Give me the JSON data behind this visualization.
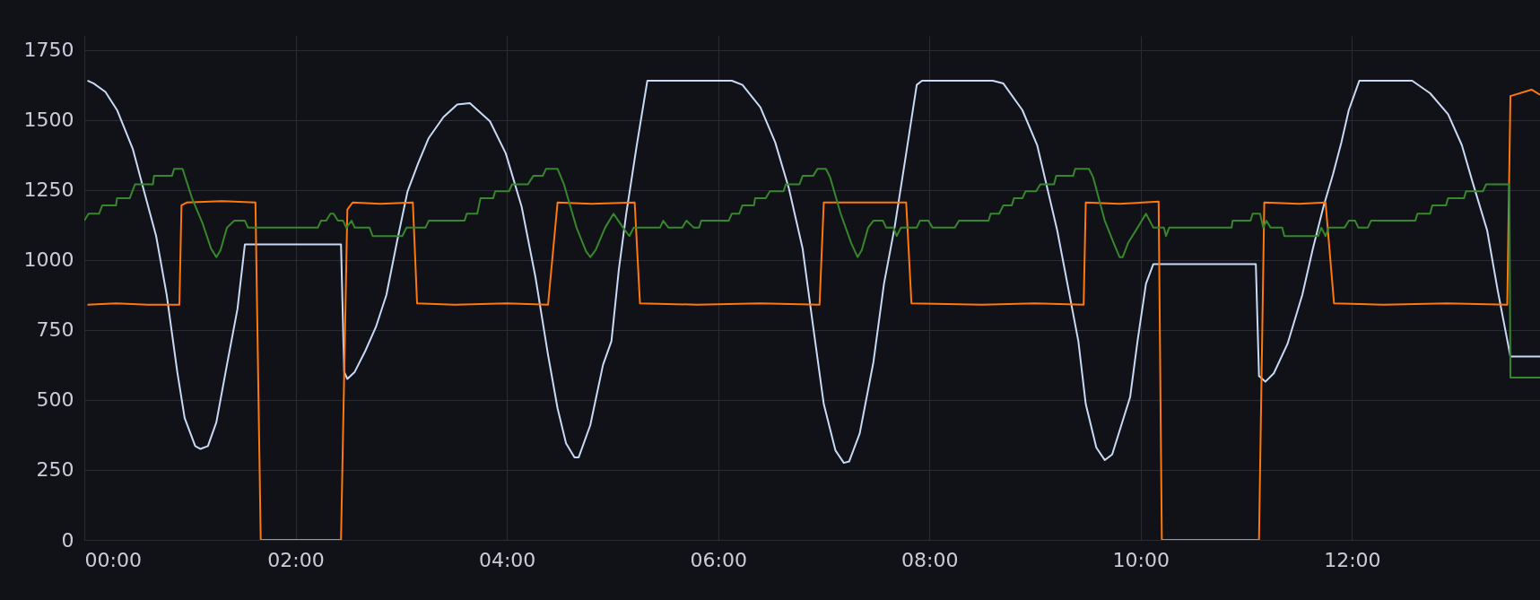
{
  "chart_data": {
    "type": "line",
    "xlim": [
      0,
      13.78
    ],
    "ylim": [
      0,
      1800
    ],
    "xticks": [
      {
        "value": 0,
        "label": "00:00"
      },
      {
        "value": 2,
        "label": "02:00"
      },
      {
        "value": 4,
        "label": "04:00"
      },
      {
        "value": 6,
        "label": "06:00"
      },
      {
        "value": 8,
        "label": "08:00"
      },
      {
        "value": 10,
        "label": "10:00"
      },
      {
        "value": 12,
        "label": "12:00"
      }
    ],
    "yticks": [
      0,
      250,
      500,
      750,
      1000,
      1250,
      1500,
      1750
    ],
    "grid": true,
    "line_style": "solid",
    "marker": "none",
    "series": [
      {
        "color": "#c8daf5",
        "x": [
          0.03,
          0.09,
          0.2,
          0.31,
          0.46,
          0.58,
          0.68,
          0.78,
          0.88,
          0.95,
          1.05,
          1.1,
          1.17,
          1.25,
          1.35,
          1.45,
          1.52,
          2.43,
          2.46,
          2.49,
          2.56,
          2.66,
          2.76,
          2.86,
          2.96,
          3.06,
          3.16,
          3.26,
          3.4,
          3.53,
          3.65,
          3.84,
          3.99,
          4.14,
          4.27,
          4.39,
          4.48,
          4.56,
          4.64,
          4.68,
          4.79,
          4.91,
          4.99,
          5.06,
          5.13,
          5.23,
          5.33,
          6.13,
          6.23,
          6.4,
          6.54,
          6.67,
          6.8,
          6.9,
          7.0,
          7.11,
          7.19,
          7.24,
          7.34,
          7.47,
          7.57,
          7.67,
          7.78,
          7.88,
          7.93,
          8.6,
          8.7,
          8.88,
          9.02,
          9.21,
          9.41,
          9.48,
          9.58,
          9.66,
          9.73,
          9.9,
          9.97,
          10.05,
          10.12,
          11.09,
          11.12,
          11.18,
          11.26,
          11.39,
          11.53,
          11.63,
          11.73,
          11.82,
          11.9,
          11.97,
          12.07,
          12.57,
          12.74,
          12.91,
          13.04,
          13.14,
          13.28,
          13.38,
          13.5,
          13.78
        ],
        "values": [
          1640,
          1630,
          1600,
          1535,
          1395,
          1225,
          1085,
          875,
          600,
          435,
          335,
          325,
          335,
          420,
          625,
          825,
          1055,
          1055,
          600,
          575,
          600,
          675,
          760,
          875,
          1065,
          1245,
          1345,
          1435,
          1510,
          1555,
          1560,
          1495,
          1380,
          1190,
          940,
          660,
          470,
          345,
          295,
          295,
          410,
          625,
          710,
          965,
          1165,
          1410,
          1640,
          1640,
          1625,
          1545,
          1420,
          1255,
          1040,
          760,
          485,
          320,
          275,
          280,
          380,
          635,
          915,
          1115,
          1380,
          1625,
          1640,
          1640,
          1630,
          1535,
          1410,
          1105,
          710,
          485,
          330,
          285,
          305,
          510,
          710,
          915,
          985,
          985,
          585,
          565,
          595,
          700,
          875,
          1040,
          1190,
          1305,
          1420,
          1535,
          1640,
          1640,
          1595,
          1520,
          1410,
          1280,
          1105,
          890,
          655,
          655
        ]
      },
      {
        "color": "#ff780a",
        "x": [
          0.03,
          0.3,
          0.6,
          0.9,
          0.92,
          0.97,
          1.3,
          1.62,
          1.67,
          2.43,
          2.49,
          2.54,
          2.8,
          3.11,
          3.15,
          3.5,
          4.0,
          4.39,
          4.48,
          4.8,
          5.21,
          5.26,
          5.8,
          6.4,
          6.96,
          7.0,
          7.4,
          7.78,
          7.83,
          8.5,
          9.0,
          9.46,
          9.48,
          9.8,
          10.17,
          10.2,
          11.12,
          11.17,
          11.5,
          11.75,
          11.83,
          12.3,
          12.9,
          13.47,
          13.5,
          13.7,
          13.78
        ],
        "values": [
          840,
          845,
          840,
          840,
          1195,
          1205,
          1210,
          1205,
          0,
          0,
          1180,
          1205,
          1200,
          1205,
          845,
          840,
          845,
          840,
          1205,
          1200,
          1205,
          845,
          840,
          845,
          840,
          1205,
          1205,
          1205,
          845,
          840,
          845,
          840,
          1205,
          1200,
          1208,
          0,
          0,
          1205,
          1200,
          1205,
          845,
          840,
          845,
          840,
          1585,
          1608,
          1590
        ]
      },
      {
        "color": "#37872d",
        "x": [
          0,
          0.04,
          0.14,
          0.17,
          0.3,
          0.31,
          0.43,
          0.48,
          0.65,
          0.66,
          0.83,
          0.85,
          0.93,
          1.02,
          1.12,
          1.2,
          1.25,
          1.29,
          1.35,
          1.42,
          1.52,
          1.55,
          2.21,
          2.24,
          2.29,
          2.33,
          2.36,
          2.4,
          2.45,
          2.48,
          2.53,
          2.56,
          2.7,
          2.73,
          3.01,
          3.05,
          3.23,
          3.26,
          3.6,
          3.62,
          3.72,
          3.75,
          3.87,
          3.89,
          4.02,
          4.05,
          4.2,
          4.25,
          4.34,
          4.37,
          4.48,
          4.54,
          4.66,
          4.75,
          4.79,
          4.84,
          4.93,
          5.01,
          5.1,
          5.16,
          5.2,
          5.45,
          5.48,
          5.53,
          5.66,
          5.7,
          5.77,
          5.82,
          5.84,
          6.1,
          6.13,
          6.2,
          6.23,
          6.34,
          6.35,
          6.45,
          6.49,
          6.62,
          6.64,
          6.77,
          6.8,
          6.9,
          6.94,
          7.02,
          7.06,
          7.16,
          7.26,
          7.32,
          7.36,
          7.42,
          7.47,
          7.56,
          7.59,
          7.66,
          7.69,
          7.73,
          7.88,
          7.91,
          7.99,
          8.03,
          8.24,
          8.28,
          8.56,
          8.58,
          8.66,
          8.7,
          8.78,
          8.8,
          8.88,
          8.91,
          9.01,
          9.05,
          9.18,
          9.2,
          9.36,
          9.38,
          9.51,
          9.55,
          9.66,
          9.75,
          9.8,
          9.83,
          9.88,
          9.97,
          10.05,
          10.12,
          10.22,
          10.24,
          10.27,
          10.86,
          10.87,
          11.04,
          11.06,
          11.13,
          11.16,
          11.19,
          11.23,
          11.34,
          11.36,
          11.68,
          11.71,
          11.75,
          11.78,
          11.93,
          11.97,
          12.03,
          12.06,
          12.15,
          12.18,
          12.6,
          12.62,
          12.74,
          12.76,
          12.89,
          12.91,
          13.06,
          13.08,
          13.24,
          13.27,
          13.49,
          13.5,
          13.78
        ],
        "values": [
          1140,
          1165,
          1165,
          1195,
          1195,
          1220,
          1220,
          1270,
          1270,
          1300,
          1300,
          1325,
          1325,
          1220,
          1130,
          1040,
          1010,
          1035,
          1115,
          1140,
          1140,
          1115,
          1115,
          1140,
          1140,
          1165,
          1165,
          1140,
          1140,
          1115,
          1140,
          1115,
          1115,
          1085,
          1085,
          1115,
          1115,
          1140,
          1140,
          1165,
          1165,
          1220,
          1220,
          1245,
          1245,
          1270,
          1270,
          1300,
          1300,
          1325,
          1325,
          1270,
          1115,
          1030,
          1010,
          1035,
          1115,
          1165,
          1115,
          1085,
          1115,
          1115,
          1140,
          1115,
          1115,
          1140,
          1115,
          1115,
          1140,
          1140,
          1165,
          1165,
          1195,
          1195,
          1220,
          1220,
          1245,
          1245,
          1270,
          1270,
          1300,
          1300,
          1325,
          1325,
          1295,
          1165,
          1060,
          1010,
          1035,
          1115,
          1140,
          1140,
          1115,
          1115,
          1085,
          1115,
          1115,
          1140,
          1140,
          1115,
          1115,
          1140,
          1140,
          1165,
          1165,
          1195,
          1195,
          1220,
          1220,
          1245,
          1245,
          1270,
          1270,
          1300,
          1300,
          1325,
          1325,
          1295,
          1140,
          1055,
          1010,
          1010,
          1060,
          1115,
          1165,
          1115,
          1115,
          1085,
          1115,
          1115,
          1140,
          1140,
          1165,
          1165,
          1115,
          1140,
          1115,
          1115,
          1085,
          1085,
          1115,
          1085,
          1115,
          1115,
          1140,
          1140,
          1115,
          1115,
          1140,
          1140,
          1165,
          1165,
          1195,
          1195,
          1220,
          1220,
          1245,
          1245,
          1270,
          1270,
          580,
          580
        ]
      }
    ]
  }
}
